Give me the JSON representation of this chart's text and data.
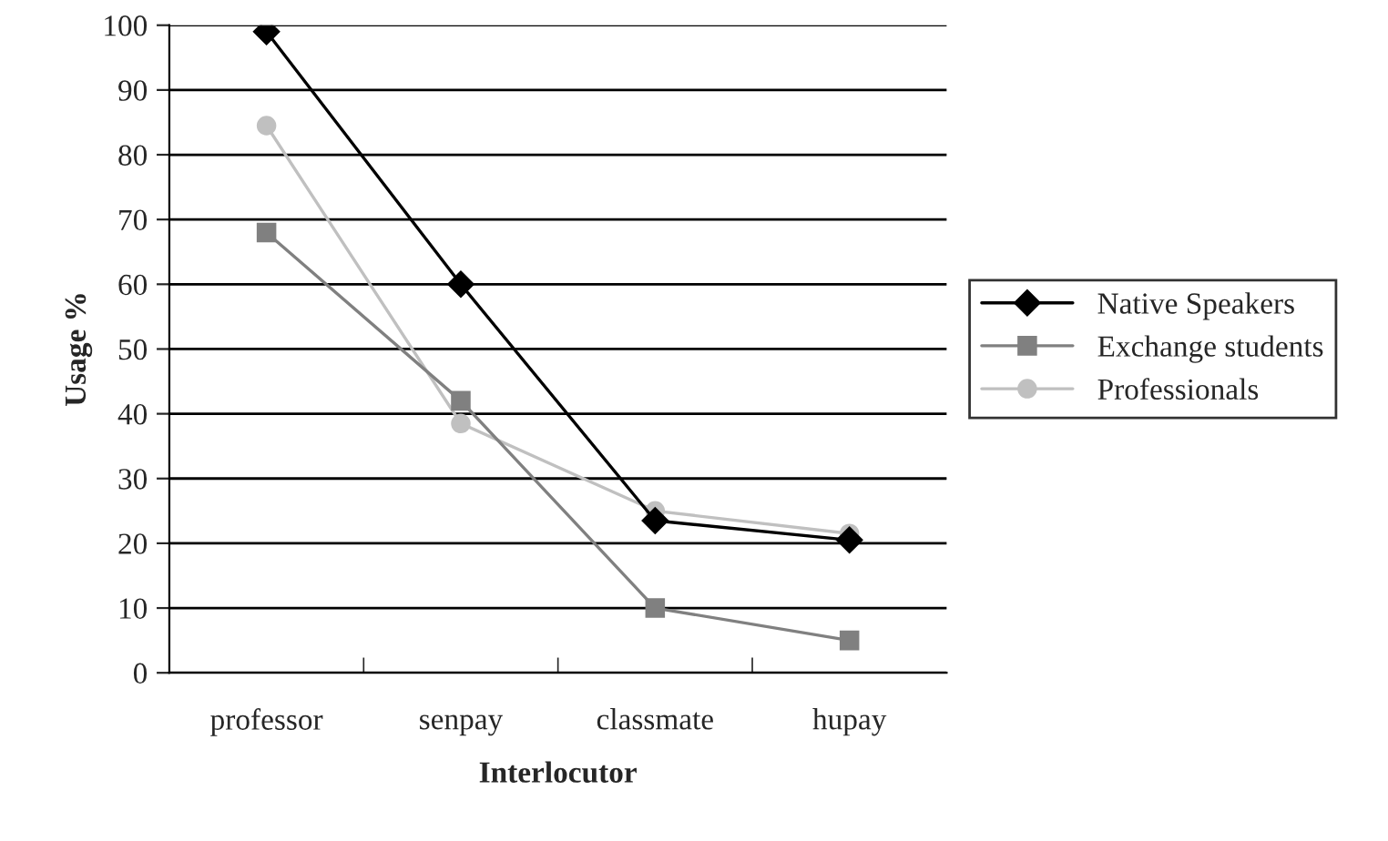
{
  "chart_data": {
    "type": "line",
    "xlabel": "Interlocutor",
    "ylabel": "Usage %",
    "categories": [
      "professor",
      "senpay",
      "classmate",
      "hupay"
    ],
    "series": [
      {
        "name": "Native Speakers",
        "color": "#000000",
        "marker": "diamond",
        "values": [
          99,
          60,
          23.5,
          20.5
        ]
      },
      {
        "name": "Exchange students",
        "color": "#808080",
        "marker": "square",
        "values": [
          68,
          42,
          10,
          5
        ]
      },
      {
        "name": "Professionals",
        "color": "#c0c0c0",
        "marker": "circle",
        "values": [
          84.5,
          38.5,
          25,
          21.5
        ]
      }
    ],
    "ylim": [
      0,
      100
    ],
    "yticks": [
      0,
      10,
      20,
      30,
      40,
      50,
      60,
      70,
      80,
      90,
      100
    ],
    "grid": "y",
    "legend": "right",
    "line_style": "solid"
  }
}
